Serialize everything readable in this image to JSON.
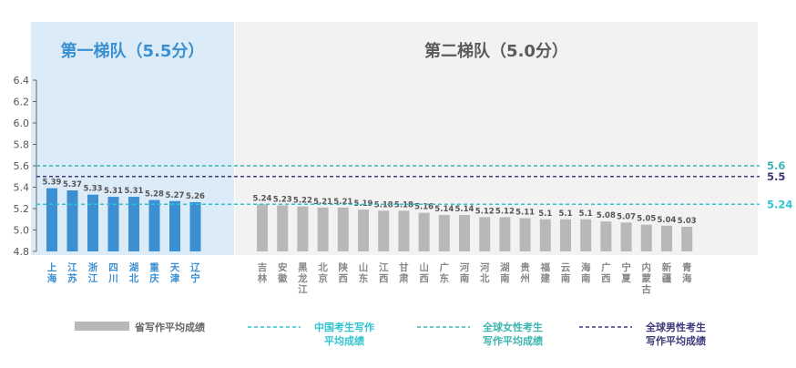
{
  "chart_data": {
    "type": "bar",
    "tiers": [
      {
        "title": "第一梯队（5.5分）",
        "count": 8
      },
      {
        "title": "第二梯队（5.0分）",
        "count": 22
      }
    ],
    "categories": [
      "上海",
      "江苏",
      "浙江",
      "四川",
      "湖北",
      "重庆",
      "天津",
      "辽宁",
      "吉林",
      "安徽",
      "黑龙江",
      "北京",
      "陕西",
      "山东",
      "江西",
      "甘肃",
      "山西",
      "广东",
      "河南",
      "河北",
      "湖南",
      "贵州",
      "福建",
      "云南",
      "海南",
      "广西",
      "宁夏",
      "内蒙古",
      "新疆",
      "青海"
    ],
    "values": [
      5.39,
      5.37,
      5.33,
      5.31,
      5.31,
      5.28,
      5.27,
      5.26,
      5.24,
      5.23,
      5.22,
      5.21,
      5.21,
      5.19,
      5.18,
      5.18,
      5.16,
      5.14,
      5.14,
      5.12,
      5.12,
      5.11,
      5.1,
      5.1,
      5.1,
      5.08,
      5.07,
      5.05,
      5.04,
      5.03
    ],
    "value_labels": [
      "5.39",
      "5.37",
      "5.33",
      "5.31",
      "5.31",
      "5.28",
      "5.27",
      "5.26",
      "5.24",
      "5.23",
      "5.22",
      "5.21",
      "5.21",
      "5.19",
      "5.18",
      "5.18",
      "5.16",
      "5.14",
      "5.14",
      "5.12",
      "5.12",
      "5.11",
      "5.1",
      "5.1",
      "5.1",
      "5.08",
      "5.07",
      "5.05",
      "5.04",
      "5.03"
    ],
    "ylim": [
      4.8,
      6.4
    ],
    "yticks": [
      "4.8",
      "5.0",
      "5.2",
      "5.4",
      "5.6",
      "5.8",
      "6.0",
      "6.2",
      "6.4"
    ],
    "reference_lines": [
      {
        "value": 5.6,
        "label": "5.6",
        "color": "#3bb5b0",
        "legend": "全球女性考生写作平均成绩"
      },
      {
        "value": 5.5,
        "label": "5.5",
        "color": "#3d3a7a",
        "legend": "全球男性考生写作平均成绩"
      },
      {
        "value": 5.24,
        "label": "5.24",
        "color": "#2fc4cf",
        "legend": "中国考生写作平均成绩"
      }
    ],
    "colors": {
      "tier1_bar": "#3c8fd1",
      "tier2_bar": "#b8b8b8",
      "tier1_bg": "#dcebf8",
      "tier2_bg": "#f2f2f2"
    },
    "legend": [
      {
        "label": "省写作平均成绩",
        "kind": "bar",
        "color": "#b8b8b8"
      },
      {
        "label": "中国考生写作\n平均成绩",
        "kind": "dash",
        "color": "#2fc4cf"
      },
      {
        "label": "全球女性考生\n写作平均成绩",
        "kind": "dash",
        "color": "#3bb5b0"
      },
      {
        "label": "全球男性考生\n写作平均成绩",
        "kind": "dash",
        "color": "#3d3a7a"
      }
    ],
    "grid": false
  }
}
